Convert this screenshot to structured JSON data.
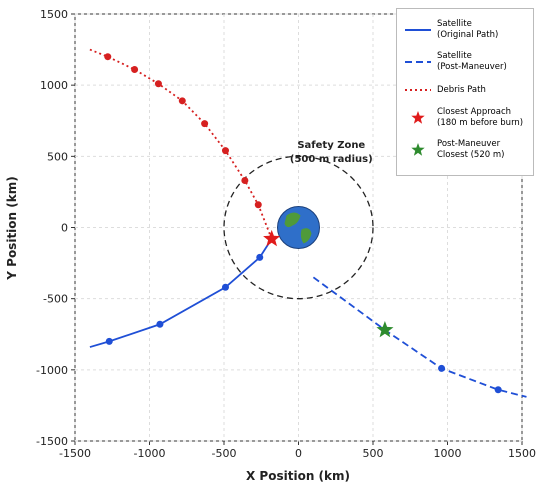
{
  "chart_data": {
    "type": "line",
    "xlabel": "X Position (km)",
    "ylabel": "Y Position (km)",
    "xlim": [
      -1500,
      1500
    ],
    "xticks": [
      -1500,
      -1000,
      -500,
      0,
      500,
      1000,
      1500
    ],
    "ylim": [
      -1500,
      1500
    ],
    "yticks": [
      -1500,
      -1000,
      -500,
      0,
      500,
      1000,
      1500
    ],
    "grid": true,
    "legend": "upper right",
    "series": [
      {
        "name": "Satellite\n(Original Path)",
        "color": "#1f4fd6",
        "dash": "solid",
        "x": [
          -1400,
          -1270,
          -930,
          -490,
          -260,
          -180
        ],
        "values": [
          -840,
          -800,
          -680,
          -420,
          -210,
          -80
        ],
        "marker_x": [
          -1270,
          -930,
          -490,
          -260
        ],
        "marker_values": [
          -800,
          -680,
          -420,
          -210
        ]
      },
      {
        "name": "Satellite\n(Post-Maneuver)",
        "color": "#1f4fd6",
        "dash": "dashed",
        "x": [
          100,
          580,
          960,
          1340,
          1530
        ],
        "values": [
          -350,
          -720,
          -990,
          -1140,
          -1190
        ],
        "marker_x": [
          960,
          1340
        ],
        "marker_values": [
          -990,
          -1140
        ]
      },
      {
        "name": "Debris Path",
        "color": "#d62020",
        "dash": "dotted",
        "x": [
          -1400,
          -1280,
          -1100,
          -940,
          -780,
          -630,
          -490,
          -360,
          -270,
          -180
        ],
        "values": [
          1250,
          1200,
          1110,
          1010,
          890,
          730,
          540,
          330,
          160,
          -80
        ],
        "marker_x": [
          -1280,
          -1100,
          -940,
          -780,
          -630,
          -490,
          -360,
          -270
        ],
        "marker_values": [
          1200,
          1110,
          1010,
          890,
          730,
          540,
          330,
          160
        ]
      }
    ],
    "stars": [
      {
        "name": "Closest Approach\n(180 m before burn)",
        "color": "#e01b1b",
        "x": -180,
        "y": -80
      },
      {
        "name": "Post-Maneuver\nClosest (520 m)",
        "color": "#2e8b2e",
        "x": 580,
        "y": -720
      }
    ],
    "safety_zone": {
      "center": [
        0,
        0
      ],
      "radius": 500,
      "label": [
        "Safety Zone",
        "(500 m radius)"
      ],
      "label_x": 220,
      "label_y": 560
    }
  }
}
